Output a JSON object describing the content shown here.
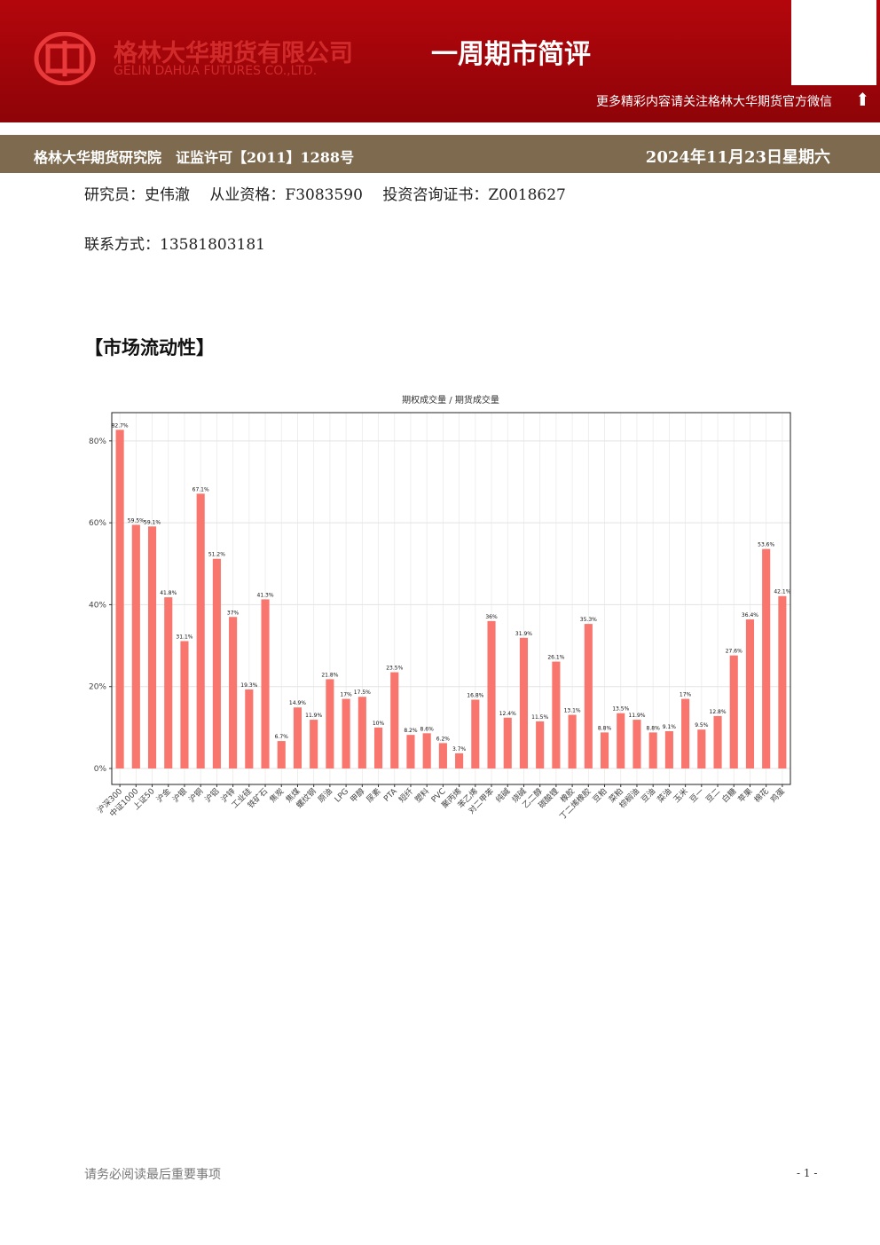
{
  "header": {
    "company_cn": "格林大华期货有限公司",
    "company_en": "GELIN DAHUA FUTURES CO.,LTD.",
    "report_title": "一周期市简评",
    "wechat_note": "更多精彩内容请关注格林大华期货官方微信"
  },
  "banner": {
    "institute": "格林大华期货研究院　证监许可【2011】1288号",
    "date": "2024年11月23日星期六"
  },
  "info": {
    "researcher": "研究员：史伟澈　 从业资格：F3083590　 投资咨询证书：Z0018627",
    "contact": "联系方式：13581803181"
  },
  "section_title": "【市场流动性】",
  "chart_data": {
    "type": "bar",
    "title": "期权成交量 / 期货成交量",
    "color": "#f8766d",
    "grid": true,
    "categories": [
      "沪深300",
      "中证1000",
      "上证50",
      "沪金",
      "沪银",
      "沪铜",
      "沪铝",
      "沪锌",
      "工业硅",
      "铁矿石",
      "焦炭",
      "焦煤",
      "螺纹钢",
      "原油",
      "LPG",
      "甲醇",
      "尿素",
      "PTA",
      "短纤",
      "塑料",
      "PVC",
      "聚丙烯",
      "苯乙烯",
      "对二甲苯",
      "纯碱",
      "烧碱",
      "乙二醇",
      "碳酸锂",
      "橡胶",
      "丁二烯橡胶",
      "豆粕",
      "菜粕",
      "棕榈油",
      "豆油",
      "菜油",
      "玉米",
      "豆一",
      "豆二",
      "白糖",
      "苹果",
      "棉花",
      "鸡蛋"
    ],
    "values": [
      82.7,
      59.5,
      59.1,
      41.8,
      31.1,
      67.1,
      51.2,
      37,
      19.3,
      41.3,
      6.7,
      14.9,
      11.9,
      21.8,
      17,
      17.5,
      10,
      23.5,
      8.2,
      8.6,
      6.2,
      3.7,
      16.8,
      36,
      12.4,
      31.9,
      11.5,
      26.1,
      13.1,
      35.3,
      8.8,
      13.5,
      11.9,
      8.8,
      9.1,
      17,
      9.5,
      12.8,
      27.6,
      36.4,
      53.6,
      42.1
    ],
    "value_labels": [
      "82.7%",
      "59.5%",
      "59.1%",
      "41.8%",
      "31.1%",
      "67.1%",
      "51.2%",
      "37%",
      "19.3%",
      "41.3%",
      "6.7%",
      "14.9%",
      "11.9%",
      "21.8%",
      "17%",
      "17.5%",
      "10%",
      "23.5%",
      "8.2%",
      "8.6%",
      "6.2%",
      "3.7%",
      "16.8%",
      "36%",
      "12.4%",
      "31.9%",
      "11.5%",
      "26.1%",
      "13.1%",
      "35.3%",
      "8.8%",
      "13.5%",
      "11.9%",
      "8.8%",
      "9.1%",
      "17%",
      "9.5%",
      "12.8%",
      "27.6%",
      "36.4%",
      "53.6%",
      "42.1%"
    ],
    "ylim": [
      -3.9,
      86.9
    ],
    "yticks": [
      {
        "value": 0,
        "label": "0%"
      },
      {
        "value": 20,
        "label": "20%"
      },
      {
        "value": 40,
        "label": "40%"
      },
      {
        "value": 60,
        "label": "60%"
      },
      {
        "value": 80,
        "label": "80%"
      }
    ]
  },
  "footer": {
    "notice": "请务必阅读最后重要事项",
    "page": "- 1 -"
  }
}
